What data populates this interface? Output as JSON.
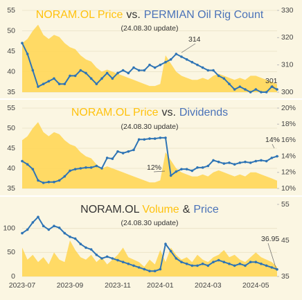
{
  "chart_data": [
    {
      "type": "combo",
      "title": [
        {
          "text": "NORAM.OL Price",
          "color": "#ffc20e"
        },
        {
          "text": "vs.",
          "color": "#333333"
        },
        {
          "text": "PERMIAN Oil Rig Count",
          "color": "#4a72b8"
        }
      ],
      "subtitle": "(24.08.30 update)",
      "annotations": [
        "314",
        "301"
      ],
      "series": [
        {
          "style": "area",
          "color": "#ffd54f",
          "values": [
            47,
            48,
            50,
            51.5,
            49,
            48,
            49,
            48.5,
            47,
            46,
            45.5,
            44,
            43,
            42.5,
            41,
            40,
            40.5,
            40,
            39.5,
            39,
            38.5,
            38,
            37.5,
            37,
            36.5,
            36.5,
            37,
            44,
            42,
            40,
            39,
            38.5,
            38,
            38,
            38.5,
            38,
            39,
            39.5,
            39,
            38.5,
            38,
            38.5,
            38,
            39,
            39,
            38.5,
            38,
            37.5,
            36.95
          ]
        },
        {
          "style": "line",
          "axis": "y2",
          "color": "#2e74b5",
          "values": [
            318,
            314,
            308,
            302,
            303,
            304,
            305,
            303,
            303,
            306,
            306,
            308,
            307,
            305,
            303,
            305,
            307,
            305,
            307,
            308,
            307,
            309,
            308,
            308,
            310,
            309,
            310,
            311,
            312,
            314,
            313,
            312,
            311,
            310,
            309,
            308,
            308,
            306,
            305,
            303,
            301,
            302,
            301,
            300,
            301,
            300,
            300,
            302,
            301
          ]
        }
      ],
      "ylim": [
        35,
        55
      ],
      "yticks": [
        35,
        40,
        45,
        50,
        55
      ],
      "y2lim": [
        300,
        330
      ],
      "y2ticks": [
        300,
        310,
        320,
        330
      ],
      "grid": true
    },
    {
      "type": "combo",
      "title": [
        {
          "text": "NORAM.OL Price",
          "color": "#ffc20e"
        },
        {
          "text": "vs.",
          "color": "#333333"
        },
        {
          "text": "Dividends",
          "color": "#4a72b8"
        }
      ],
      "subtitle": "(24.08.30 update)",
      "annotations": [
        "12%",
        "14%"
      ],
      "series": [
        {
          "style": "area",
          "color": "#ffd54f",
          "values": [
            47,
            48,
            50,
            51.5,
            49,
            48,
            49,
            48.5,
            47,
            46,
            45.5,
            44,
            43,
            42.5,
            41,
            40,
            40.5,
            40,
            39.5,
            39,
            38.5,
            38,
            37.5,
            37,
            36.5,
            36.5,
            37,
            44,
            42,
            40,
            39,
            38.5,
            38,
            38,
            38.5,
            38,
            39,
            39.5,
            39,
            38.5,
            38,
            38.5,
            38,
            39,
            39,
            38.5,
            38,
            37.5,
            36.95
          ]
        },
        {
          "style": "line",
          "axis": "y2",
          "color": "#2e74b5",
          "values": [
            13.4,
            13,
            12.4,
            11,
            10.7,
            10.8,
            10.8,
            11,
            11.5,
            12.2,
            12.4,
            12.5,
            12.6,
            12.6,
            12.8,
            12.5,
            13.8,
            13.7,
            14.6,
            14.4,
            14.6,
            14.8,
            16.1,
            16.1,
            16.2,
            16.2,
            16.3,
            16.3,
            11.6,
            12.1,
            12.4,
            12.4,
            12.2,
            12.6,
            12.6,
            12.8,
            13.5,
            13.3,
            13.1,
            13.2,
            13.0,
            13.2,
            13.3,
            13.2,
            13.4,
            13.5,
            13.4,
            13.8,
            14.0
          ]
        }
      ],
      "ylim": [
        35,
        55
      ],
      "yticks": [
        35,
        40,
        45,
        50,
        55
      ],
      "y2lim": [
        10,
        20
      ],
      "y2ticks": [
        {
          "value": 10,
          "label": "10%"
        },
        {
          "value": 12,
          "label": "12%"
        },
        {
          "value": 14,
          "label": "14%"
        },
        {
          "value": 16,
          "label": "16%"
        },
        {
          "value": 18,
          "label": "18%"
        },
        {
          "value": 20,
          "label": "20%"
        }
      ],
      "grid": true
    },
    {
      "type": "combo",
      "title": [
        {
          "text": "NORAM.OL",
          "color": "#333333"
        },
        {
          "text": "Volume",
          "color": "#ffc20e"
        },
        {
          "text": "&",
          "color": "#333333"
        },
        {
          "text": "Price",
          "color": "#4a72b8"
        }
      ],
      "subtitle": "(24.08.30 update)",
      "annotations": [
        "36.95"
      ],
      "categories": [
        "2023-07",
        null,
        null,
        null,
        null,
        null,
        null,
        null,
        null,
        "2023-09",
        null,
        null,
        null,
        null,
        null,
        null,
        null,
        null,
        "2023-11",
        null,
        null,
        null,
        null,
        null,
        null,
        null,
        "2024-01",
        null,
        null,
        null,
        null,
        null,
        null,
        null,
        null,
        "2024-03",
        null,
        null,
        null,
        null,
        null,
        null,
        null,
        null,
        "2024-05",
        null,
        null,
        null,
        null
      ],
      "series": [
        {
          "style": "area",
          "color": "#ffd54f",
          "values": [
            60,
            35,
            45,
            30,
            40,
            25,
            50,
            35,
            30,
            75,
            55,
            40,
            35,
            45,
            30,
            40,
            25,
            35,
            45,
            60,
            40,
            35,
            30,
            20,
            35,
            25,
            55,
            30,
            60,
            45,
            35,
            40,
            30,
            45,
            35,
            30,
            40,
            45,
            55,
            40,
            45,
            35,
            30,
            40,
            50,
            40,
            35,
            30,
            20
          ]
        },
        {
          "style": "line",
          "axis": "y2",
          "color": "#2e74b5",
          "values": [
            47,
            48,
            50,
            51.5,
            49,
            48,
            49,
            48.5,
            47,
            46,
            45.5,
            44,
            43,
            42.5,
            41,
            40,
            40.5,
            40,
            39.5,
            39,
            38.5,
            38,
            37.5,
            37,
            36.5,
            36.5,
            37,
            44,
            42,
            40,
            39,
            38.5,
            38,
            38,
            38.5,
            38,
            39,
            39.5,
            39,
            38.5,
            38,
            38.5,
            38,
            39,
            39,
            38.5,
            38,
            37.5,
            36.95
          ]
        }
      ],
      "ylim": [
        0,
        150
      ],
      "yticks": [
        0,
        50,
        100
      ],
      "y2lim": [
        35,
        55
      ],
      "y2ticks": [
        35,
        45,
        55
      ],
      "grid": true
    }
  ]
}
